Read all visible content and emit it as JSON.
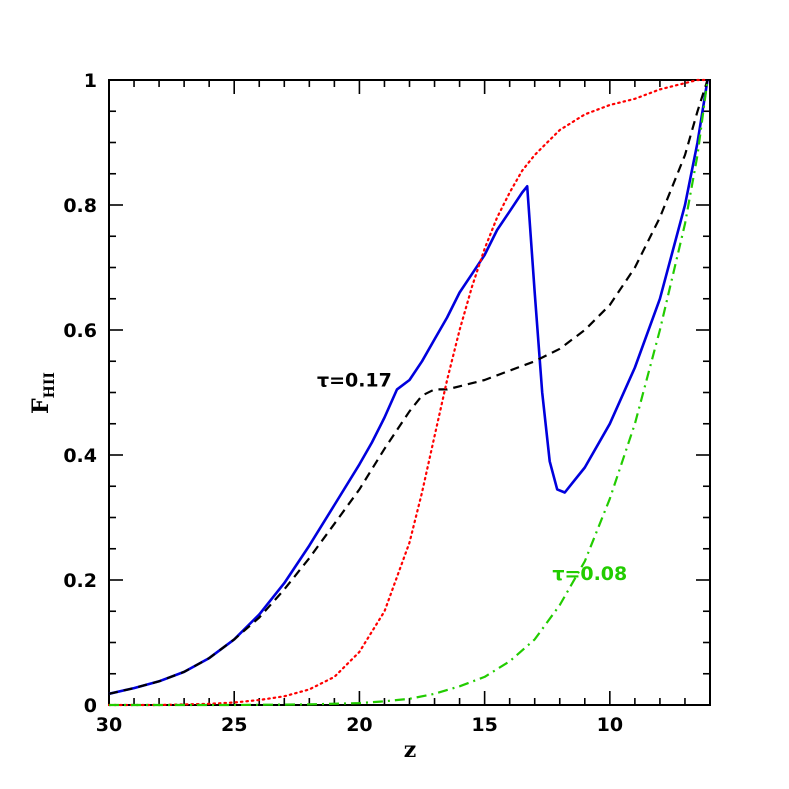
{
  "chart_data": {
    "type": "line",
    "xlabel": "z",
    "ylabel": "F",
    "ylabel_sub": "HII",
    "xlim": [
      30,
      6
    ],
    "ylim": [
      0,
      1
    ],
    "x_ticks": [
      30,
      25,
      20,
      15,
      10
    ],
    "x_tick_labels": [
      "30",
      "25",
      "20",
      "15",
      "10"
    ],
    "y_ticks": [
      0,
      0.2,
      0.4,
      0.6,
      0.8,
      1
    ],
    "y_tick_labels": [
      "0",
      "0.2",
      "0.4",
      "0.6",
      "0.8",
      "1"
    ],
    "grid": false,
    "annotations": [
      {
        "text": "τ=0.17",
        "x": 20.2,
        "y": 0.51,
        "color": "#000000"
      },
      {
        "text": "τ=0.08",
        "x": 10.8,
        "y": 0.2,
        "color": "#22cc00"
      }
    ],
    "series": [
      {
        "color": "#0000dd",
        "style": "solid",
        "x": [
          30,
          29,
          28,
          27,
          26,
          25,
          24,
          23,
          22,
          21,
          20,
          19.5,
          19,
          18.5,
          18,
          17.5,
          17,
          16.5,
          16,
          15.5,
          15,
          14.5,
          14,
          13.5,
          13.3,
          13.0,
          12.7,
          12.4,
          12.1,
          11.8,
          11.5,
          11,
          10,
          9,
          8,
          7,
          6.5,
          6.1
        ],
        "y": [
          0.018,
          0.027,
          0.038,
          0.053,
          0.075,
          0.105,
          0.145,
          0.195,
          0.255,
          0.32,
          0.385,
          0.42,
          0.46,
          0.505,
          0.52,
          0.55,
          0.585,
          0.62,
          0.66,
          0.69,
          0.72,
          0.76,
          0.79,
          0.82,
          0.83,
          0.66,
          0.5,
          0.39,
          0.345,
          0.34,
          0.355,
          0.38,
          0.45,
          0.54,
          0.65,
          0.8,
          0.9,
          1.0
        ]
      },
      {
        "color": "#000000",
        "style": "dashed",
        "x": [
          30,
          29,
          28,
          27,
          26,
          25,
          24,
          23,
          22,
          21,
          20,
          19,
          18.5,
          18,
          17.5,
          17,
          16.5,
          16,
          15,
          14,
          13,
          12,
          11,
          10,
          9,
          8,
          7,
          6.5,
          6.1
        ],
        "y": [
          0.018,
          0.027,
          0.038,
          0.053,
          0.075,
          0.105,
          0.14,
          0.185,
          0.235,
          0.29,
          0.345,
          0.41,
          0.44,
          0.47,
          0.495,
          0.505,
          0.505,
          0.51,
          0.52,
          0.535,
          0.55,
          0.57,
          0.6,
          0.64,
          0.7,
          0.78,
          0.88,
          0.95,
          1.0
        ]
      },
      {
        "color": "#ff0000",
        "style": "dotted",
        "x": [
          30,
          28,
          26,
          25,
          24,
          23,
          22,
          21,
          20,
          19,
          18,
          17.5,
          17,
          16.5,
          16,
          15.5,
          15,
          14.5,
          14,
          13.5,
          13,
          12.5,
          12,
          11,
          10,
          9,
          8,
          7,
          6.5,
          6.1
        ],
        "y": [
          0,
          0,
          0.002,
          0.004,
          0.008,
          0.014,
          0.025,
          0.045,
          0.085,
          0.15,
          0.26,
          0.34,
          0.43,
          0.52,
          0.6,
          0.67,
          0.73,
          0.78,
          0.82,
          0.855,
          0.88,
          0.9,
          0.92,
          0.945,
          0.96,
          0.97,
          0.985,
          0.995,
          1.0,
          1.0
        ]
      },
      {
        "color": "#22cc00",
        "style": "dashdot",
        "x": [
          30,
          25,
          22,
          20,
          19,
          18,
          17,
          16,
          15,
          14,
          13,
          12,
          11,
          10,
          9,
          8,
          7,
          6.5,
          6.1
        ],
        "y": [
          0,
          0,
          0.001,
          0.003,
          0.006,
          0.01,
          0.018,
          0.03,
          0.045,
          0.07,
          0.105,
          0.16,
          0.23,
          0.33,
          0.45,
          0.6,
          0.77,
          0.88,
          1.0
        ]
      }
    ]
  }
}
